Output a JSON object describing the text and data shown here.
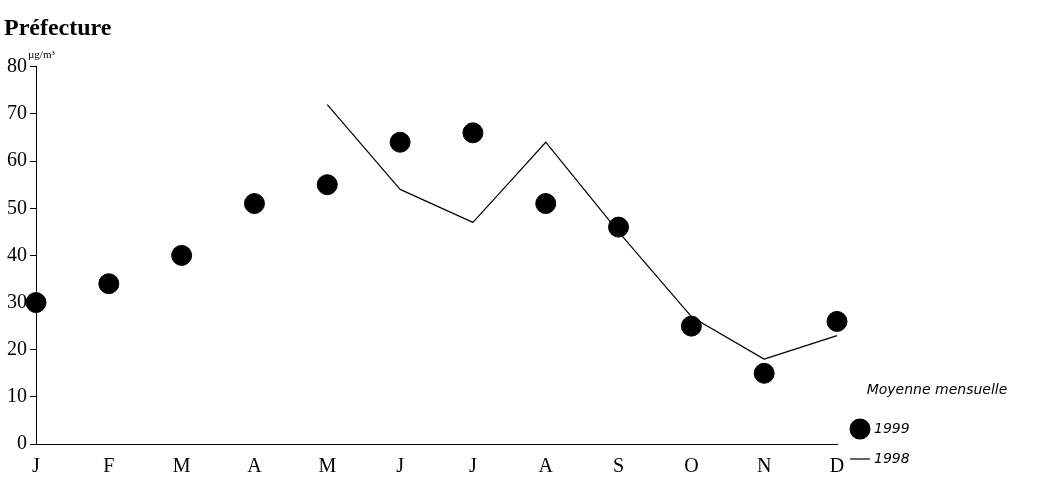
{
  "chart_data": {
    "type": "line",
    "title": "Préfecture",
    "ylabel": "µg/m³",
    "categories": [
      "J",
      "F",
      "M",
      "A",
      "M",
      "J",
      "J",
      "A",
      "S",
      "O",
      "N",
      "D"
    ],
    "series": [
      {
        "name": "1999",
        "type": "scatter",
        "color": "#000000",
        "marker": "circle",
        "values": [
          30,
          34,
          40,
          51,
          55,
          64,
          66,
          51,
          46,
          25,
          15,
          26
        ]
      },
      {
        "name": "1998",
        "type": "line",
        "color": "#000000",
        "marker": "none",
        "line_style": "solid",
        "values": [
          null,
          null,
          null,
          null,
          72,
          54,
          47,
          64,
          45,
          27,
          18,
          23
        ]
      }
    ],
    "ylim": [
      0,
      80
    ],
    "yticks": [
      0,
      10,
      20,
      30,
      40,
      50,
      60,
      70,
      80
    ],
    "grid": false,
    "legend": "bottom right",
    "legend_title": "Moyenne mensuelle"
  }
}
